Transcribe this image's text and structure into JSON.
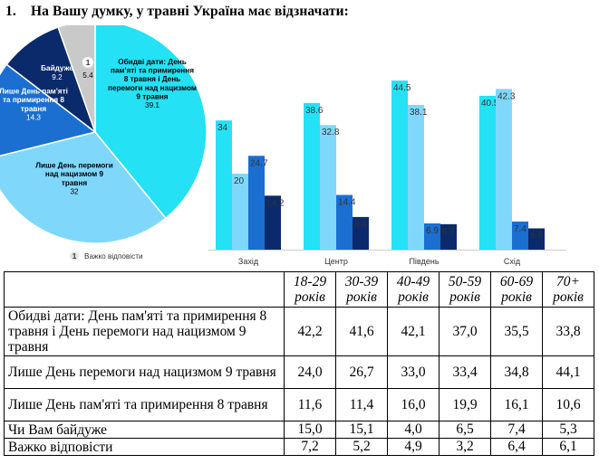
{
  "question": {
    "number": "1.",
    "text": "На Вашу думку, у травні Україна має відзначати:"
  },
  "colors": {
    "cyan": "#24e1f5",
    "light_blue": "#7fd8fb",
    "blue": "#1a6fd1",
    "dark_navy": "#0a2a6b",
    "grey": "#c9c9c9"
  },
  "chart_data": [
    {
      "type": "pie",
      "legend": "Важко відповісти",
      "slices": [
        {
          "label": "Обидві дати: День пам'яті та примирення 8 травня і День перемоги над нацизмом 9 травня",
          "value": 39.1,
          "color": "#24e1f5"
        },
        {
          "label": "Лише День перемоги над нацизмом 9 травня",
          "value": 32,
          "color": "#7fd8fb"
        },
        {
          "label": "Лише День пам'яті та примирення 8 травня",
          "value": 14.3,
          "color": "#1a6fd1"
        },
        {
          "label": "Байдуже",
          "value": 9.2,
          "color": "#0a2a6b"
        },
        {
          "label": "1",
          "value": 5.4,
          "color": "#c9c9c9"
        }
      ]
    },
    {
      "type": "bar",
      "categories": [
        "Захід",
        "Центр",
        "Південь",
        "Схід"
      ],
      "ylim": [
        0,
        50
      ],
      "series": [
        {
          "values": [
            34,
            38.6,
            44.5,
            40.5
          ],
          "color": "#24e1f5"
        },
        {
          "values": [
            20,
            32.8,
            38.1,
            42.3
          ],
          "color": "#7fd8fb"
        },
        {
          "values": [
            24.7,
            14.4,
            6.9,
            7.4
          ],
          "color": "#1a6fd1"
        },
        {
          "values": [
            14.2,
            8.6,
            6.7,
            5.6
          ],
          "color": "#0a2a6b"
        }
      ]
    }
  ],
  "table": {
    "headers": [
      "18-29 років",
      "30-39 років",
      "40-49 років",
      "50-59 років",
      "60-69 років",
      "70+ років"
    ],
    "rows": [
      {
        "label": "Обидві дати: День пам'яті та примирення 8 травня і День перемоги над нацизмом 9 травня",
        "values": [
          "42,2",
          "41,6",
          "42,1",
          "37,0",
          "35,5",
          "33,8"
        ]
      },
      {
        "label": "Лише День перемоги над нацизмом 9 травня",
        "values": [
          "24,0",
          "26,7",
          "33,0",
          "33,4",
          "34,8",
          "44,1"
        ]
      },
      {
        "label": "Лише День пам'яті та примирення 8 травня",
        "values": [
          "11,6",
          "11,4",
          "16,0",
          "19,9",
          "16,1",
          "10,6"
        ]
      },
      {
        "label": "Чи Вам байдуже",
        "values": [
          "15,0",
          "15,1",
          "4,0",
          "6,5",
          "7,4",
          "5,3"
        ]
      },
      {
        "label": "Важко відповісти",
        "values": [
          "7,2",
          "5,2",
          "4,9",
          "3,2",
          "6,4",
          "6,1"
        ]
      }
    ]
  }
}
